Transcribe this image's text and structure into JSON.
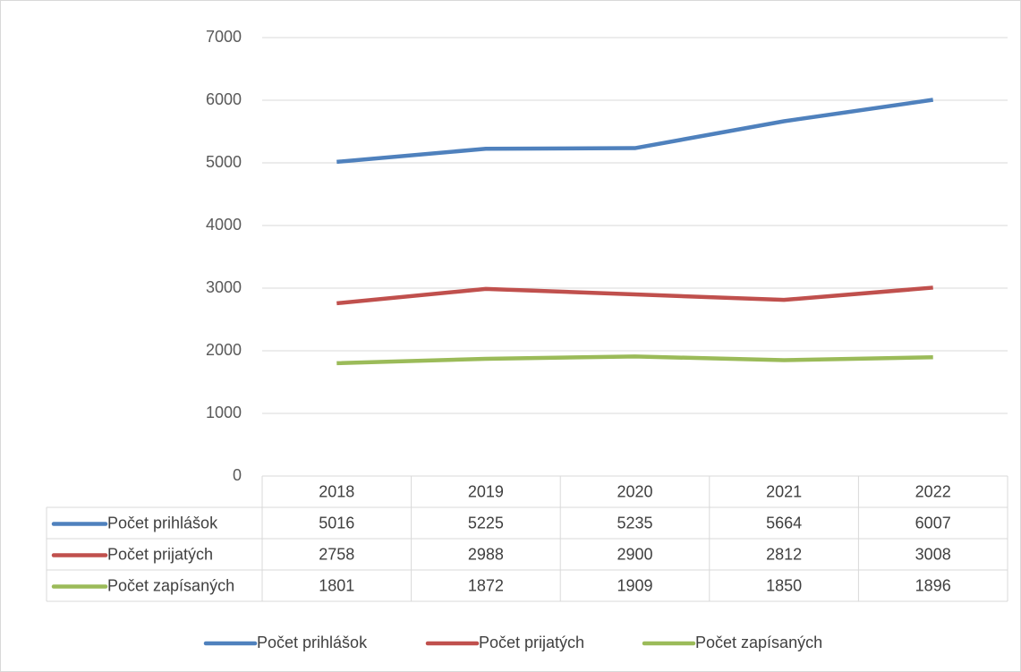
{
  "chart_data": {
    "type": "line",
    "categories": [
      "2018",
      "2019",
      "2020",
      "2021",
      "2022"
    ],
    "series": [
      {
        "name": "Počet prihlášok",
        "color": "#4f81bd",
        "values": [
          5016,
          5225,
          5235,
          5664,
          6007
        ]
      },
      {
        "name": "Počet prijatých",
        "color": "#c0504d",
        "values": [
          2758,
          2988,
          2900,
          2812,
          3008
        ]
      },
      {
        "name": "Počet zapísaných",
        "color": "#9bbb59",
        "values": [
          1801,
          1872,
          1909,
          1850,
          1896
        ]
      }
    ],
    "ylim": [
      0,
      7000
    ],
    "yticks": [
      0,
      1000,
      2000,
      3000,
      4000,
      5000,
      6000,
      7000
    ],
    "grid": true,
    "legend": "bottom",
    "data_table": true
  }
}
